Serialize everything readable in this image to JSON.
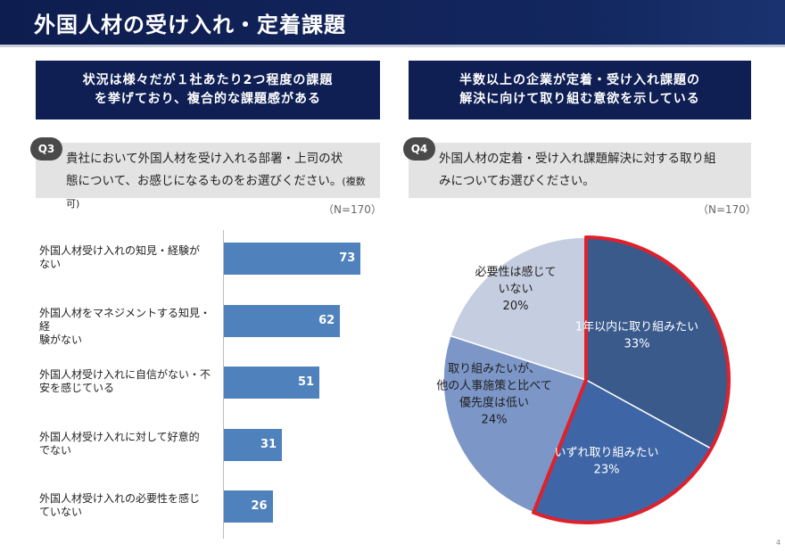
{
  "title": "外国人材の受け入れ・定着課題",
  "left": {
    "headline_line1": "状況は様々だが１社あたり2つ程度の課題",
    "headline_line2": "を挙げており、複合的な課題感がある",
    "question_badge": "Q3",
    "question_line1": "貴社において外国人材を受け入れる部署・上司の状",
    "question_line2": "態について、お感じになるものをお選びください。",
    "question_note": "(複数可)",
    "n_label": "（N=170）"
  },
  "right": {
    "headline_line1": "半数以上の企業が定着・受け入れ課題の",
    "headline_line2": "解決に向けて取り組む意欲を示している",
    "question_badge": "Q4",
    "question_line1": "外国人材の定着・受け入れ課題解決に対する取り組",
    "question_line2": "みについてお選びください。",
    "n_label": "（N=170）"
  },
  "page_number": "4",
  "colors": {
    "title_bg": "#0e1d4f",
    "bar": "#4f81bd",
    "pie_1": "#3a5a8c",
    "pie_2": "#3e66a6",
    "pie_3": "#7b96c7",
    "pie_4": "#c5cde0",
    "highlight": "#e0202a"
  },
  "chart_data": [
    {
      "type": "bar",
      "orientation": "horizontal",
      "categories": [
        [
          "外国人材受け入れの知見・経験が",
          "ない"
        ],
        [
          "外国人材をマネジメントする知見・経",
          "験がない"
        ],
        [
          "外国人材受け入れに自信がない・不",
          "安を感じている"
        ],
        [
          "外国人材受け入れに対して好意的",
          "でない"
        ],
        [
          "外国人材受け入れの必要性を感じ",
          "ていない"
        ]
      ],
      "values": [
        73,
        62,
        51,
        31,
        26
      ],
      "xlim": [
        0,
        100
      ]
    },
    {
      "type": "pie",
      "slices": [
        {
          "label_lines": [
            "1年以内に取り組みたい"
          ],
          "value": 33,
          "pct": "33%"
        },
        {
          "label_lines": [
            "いずれ取り組みたい"
          ],
          "value": 23,
          "pct": "23%"
        },
        {
          "label_lines": [
            "取り組みたいが、",
            "他の人事施策と比べて",
            "優先度は低い"
          ],
          "value": 24,
          "pct": "24%"
        },
        {
          "label_lines": [
            "必要性は感じて",
            "いない"
          ],
          "value": 20,
          "pct": "20%"
        }
      ],
      "highlighted": [
        0,
        1
      ]
    }
  ]
}
